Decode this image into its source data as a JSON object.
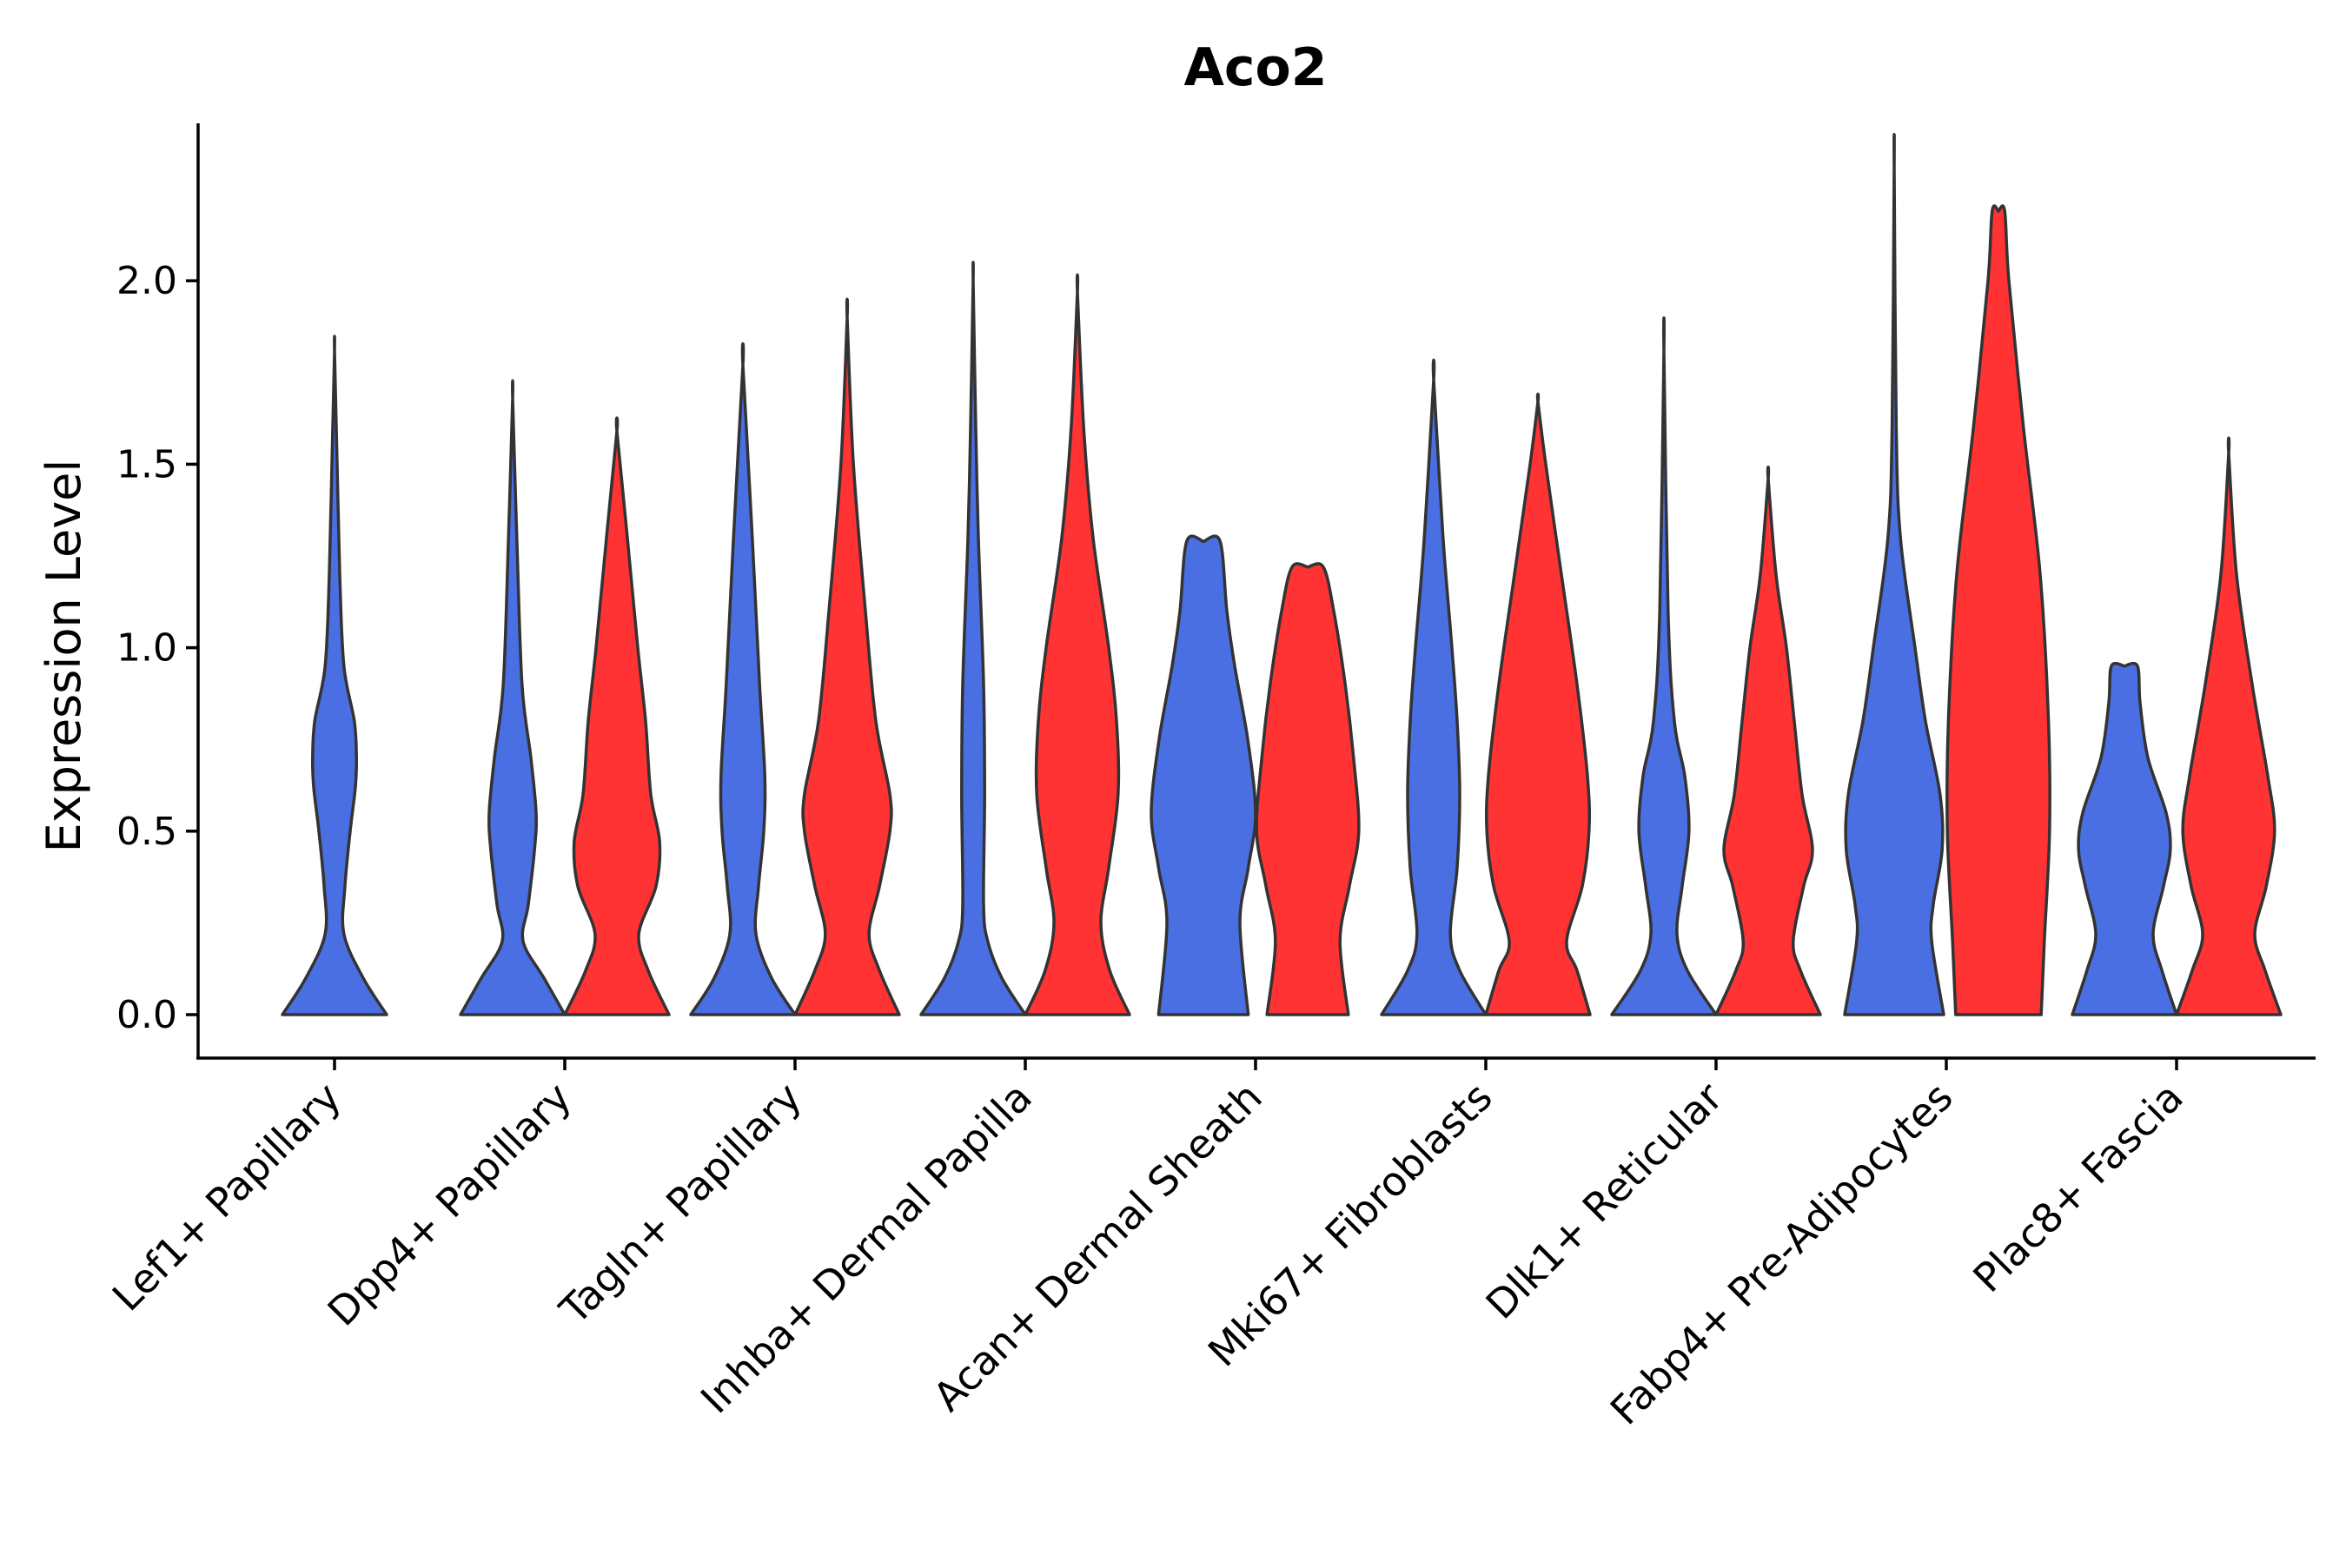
{
  "chart_data": {
    "type": "violin",
    "title": "Aco2",
    "xlabel": "",
    "ylabel": "Expression Level",
    "ylim": [
      -0.12,
      2.45
    ],
    "yticks": [
      0.0,
      0.5,
      1.0,
      1.5,
      2.0
    ],
    "ytick_labels": [
      "0.0",
      "0.5",
      "1.0",
      "1.5",
      "2.0"
    ],
    "categories": [
      "Lef1+ Papillary",
      "Dpp4+ Papillary",
      "Tagln+ Papillary",
      "Inhba+ Dermal Papilla",
      "Acan+ Dermal Sheath",
      "Mki67+ Fibroblasts",
      "Dlk1+ Reticular",
      "Fabp4+ Pre-Adipocytes",
      "Plac8+ Fascia"
    ],
    "series_colors": {
      "blue": "#4A6FE3",
      "red": "#FF3333"
    },
    "violins": [
      {
        "category": "Lef1+ Papillary",
        "group": "blue",
        "max": 1.81,
        "profile": [
          [
            0.0,
            1.0
          ],
          [
            0.1,
            0.55
          ],
          [
            0.22,
            0.18
          ],
          [
            0.35,
            0.2
          ],
          [
            0.5,
            0.3
          ],
          [
            0.62,
            0.4
          ],
          [
            0.7,
            0.42
          ],
          [
            0.8,
            0.38
          ],
          [
            0.95,
            0.18
          ],
          [
            1.2,
            0.1
          ],
          [
            1.5,
            0.05
          ],
          [
            1.81,
            0.0
          ]
        ]
      },
      {
        "category": "Dpp4+ Papillary",
        "group": "blue",
        "max": 1.68,
        "profile": [
          [
            0.0,
            1.0
          ],
          [
            0.1,
            0.6
          ],
          [
            0.2,
            0.2
          ],
          [
            0.3,
            0.3
          ],
          [
            0.45,
            0.42
          ],
          [
            0.55,
            0.45
          ],
          [
            0.7,
            0.35
          ],
          [
            0.9,
            0.18
          ],
          [
            1.3,
            0.08
          ],
          [
            1.68,
            0.0
          ]
        ]
      },
      {
        "category": "Dpp4+ Papillary",
        "group": "red",
        "max": 1.59,
        "profile": [
          [
            0.0,
            1.0
          ],
          [
            0.12,
            0.6
          ],
          [
            0.22,
            0.42
          ],
          [
            0.35,
            0.75
          ],
          [
            0.47,
            0.82
          ],
          [
            0.6,
            0.65
          ],
          [
            0.8,
            0.55
          ],
          [
            1.0,
            0.4
          ],
          [
            1.3,
            0.2
          ],
          [
            1.59,
            0.0
          ]
        ]
      },
      {
        "category": "Tagln+ Papillary",
        "group": "blue",
        "max": 1.77,
        "profile": [
          [
            0.0,
            1.0
          ],
          [
            0.1,
            0.55
          ],
          [
            0.22,
            0.25
          ],
          [
            0.35,
            0.3
          ],
          [
            0.5,
            0.4
          ],
          [
            0.65,
            0.42
          ],
          [
            0.9,
            0.32
          ],
          [
            1.3,
            0.18
          ],
          [
            1.77,
            0.0
          ]
        ]
      },
      {
        "category": "Tagln+ Papillary",
        "group": "red",
        "max": 1.9,
        "profile": [
          [
            0.0,
            1.0
          ],
          [
            0.12,
            0.62
          ],
          [
            0.22,
            0.42
          ],
          [
            0.35,
            0.62
          ],
          [
            0.5,
            0.82
          ],
          [
            0.6,
            0.82
          ],
          [
            0.8,
            0.55
          ],
          [
            1.1,
            0.35
          ],
          [
            1.5,
            0.12
          ],
          [
            1.9,
            0.0
          ]
        ]
      },
      {
        "category": "Inhba+ Dermal Papilla",
        "group": "blue",
        "max": 2.0,
        "profile": [
          [
            0.0,
            1.0
          ],
          [
            0.1,
            0.55
          ],
          [
            0.2,
            0.28
          ],
          [
            0.3,
            0.2
          ],
          [
            0.6,
            0.22
          ],
          [
            0.9,
            0.2
          ],
          [
            1.3,
            0.1
          ],
          [
            1.6,
            0.05
          ],
          [
            2.0,
            0.0
          ]
        ]
      },
      {
        "category": "Inhba+ Dermal Papilla",
        "group": "red",
        "max": 1.97,
        "profile": [
          [
            0.0,
            1.0
          ],
          [
            0.12,
            0.62
          ],
          [
            0.25,
            0.45
          ],
          [
            0.4,
            0.6
          ],
          [
            0.6,
            0.78
          ],
          [
            0.8,
            0.75
          ],
          [
            1.0,
            0.6
          ],
          [
            1.3,
            0.3
          ],
          [
            1.6,
            0.12
          ],
          [
            1.97,
            0.0
          ]
        ]
      },
      {
        "category": "Acan+ Dermal Sheath",
        "group": "blue",
        "max": 1.29,
        "profile": [
          [
            0.0,
            0.86
          ],
          [
            0.25,
            0.7
          ],
          [
            0.4,
            0.86
          ],
          [
            0.55,
            1.0
          ],
          [
            0.75,
            0.85
          ],
          [
            0.95,
            0.6
          ],
          [
            1.1,
            0.45
          ],
          [
            1.29,
            0.32
          ],
          [
            1.29,
            0.0
          ]
        ]
      },
      {
        "category": "Acan+ Dermal Sheath",
        "group": "red",
        "max": 1.22,
        "profile": [
          [
            0.0,
            0.78
          ],
          [
            0.2,
            0.62
          ],
          [
            0.35,
            0.8
          ],
          [
            0.5,
            0.98
          ],
          [
            0.7,
            0.88
          ],
          [
            0.9,
            0.72
          ],
          [
            1.1,
            0.5
          ],
          [
            1.22,
            0.3
          ],
          [
            1.22,
            0.0
          ]
        ]
      },
      {
        "category": "Mki67+ Fibroblasts",
        "group": "blue",
        "max": 1.73,
        "profile": [
          [
            0.0,
            1.0
          ],
          [
            0.12,
            0.5
          ],
          [
            0.22,
            0.32
          ],
          [
            0.4,
            0.45
          ],
          [
            0.6,
            0.5
          ],
          [
            0.8,
            0.45
          ],
          [
            1.0,
            0.35
          ],
          [
            1.3,
            0.18
          ],
          [
            1.73,
            0.0
          ]
        ]
      },
      {
        "category": "Mki67+ Fibroblasts",
        "group": "red",
        "max": 1.67,
        "profile": [
          [
            0.0,
            1.0
          ],
          [
            0.12,
            0.75
          ],
          [
            0.2,
            0.55
          ],
          [
            0.35,
            0.85
          ],
          [
            0.5,
            0.98
          ],
          [
            0.65,
            0.95
          ],
          [
            0.9,
            0.75
          ],
          [
            1.2,
            0.45
          ],
          [
            1.5,
            0.15
          ],
          [
            1.67,
            0.0
          ]
        ]
      },
      {
        "category": "Dlk1+ Reticular",
        "group": "blue",
        "max": 1.81,
        "profile": [
          [
            0.0,
            1.0
          ],
          [
            0.12,
            0.45
          ],
          [
            0.22,
            0.25
          ],
          [
            0.35,
            0.35
          ],
          [
            0.5,
            0.48
          ],
          [
            0.65,
            0.4
          ],
          [
            0.8,
            0.2
          ],
          [
            1.1,
            0.08
          ],
          [
            1.81,
            0.0
          ]
        ]
      },
      {
        "category": "Dlk1+ Reticular",
        "group": "red",
        "max": 1.46,
        "profile": [
          [
            0.0,
            1.0
          ],
          [
            0.12,
            0.62
          ],
          [
            0.2,
            0.48
          ],
          [
            0.35,
            0.68
          ],
          [
            0.45,
            0.85
          ],
          [
            0.6,
            0.65
          ],
          [
            0.8,
            0.5
          ],
          [
            1.0,
            0.35
          ],
          [
            1.2,
            0.15
          ],
          [
            1.46,
            0.0
          ]
        ]
      },
      {
        "category": "Fabp4+ Pre-Adipocytes",
        "group": "blue",
        "max": 2.31,
        "profile": [
          [
            0.0,
            0.95
          ],
          [
            0.2,
            0.72
          ],
          [
            0.3,
            0.75
          ],
          [
            0.45,
            0.92
          ],
          [
            0.6,
            0.88
          ],
          [
            0.8,
            0.6
          ],
          [
            1.0,
            0.4
          ],
          [
            1.3,
            0.12
          ],
          [
            1.6,
            0.04
          ],
          [
            2.31,
            0.0
          ]
        ]
      },
      {
        "category": "Fabp4+ Pre-Adipocytes",
        "group": "red",
        "max": 2.19,
        "profile": [
          [
            0.0,
            0.82
          ],
          [
            0.2,
            0.88
          ],
          [
            0.5,
            0.98
          ],
          [
            0.8,
            0.96
          ],
          [
            1.2,
            0.8
          ],
          [
            1.6,
            0.48
          ],
          [
            2.0,
            0.2
          ],
          [
            2.19,
            0.12
          ],
          [
            2.19,
            0.0
          ]
        ]
      },
      {
        "category": "Plac8+ Fascia",
        "group": "blue",
        "max": 0.95,
        "profile": [
          [
            0.0,
            1.0
          ],
          [
            0.12,
            0.72
          ],
          [
            0.22,
            0.55
          ],
          [
            0.35,
            0.75
          ],
          [
            0.45,
            0.88
          ],
          [
            0.55,
            0.8
          ],
          [
            0.7,
            0.45
          ],
          [
            0.85,
            0.3
          ],
          [
            0.95,
            0.25
          ],
          [
            0.95,
            0.0
          ]
        ]
      },
      {
        "category": "Plac8+ Fascia",
        "group": "red",
        "max": 1.53,
        "profile": [
          [
            0.0,
            1.0
          ],
          [
            0.12,
            0.7
          ],
          [
            0.22,
            0.5
          ],
          [
            0.35,
            0.72
          ],
          [
            0.5,
            0.88
          ],
          [
            0.65,
            0.75
          ],
          [
            0.9,
            0.45
          ],
          [
            1.2,
            0.15
          ],
          [
            1.53,
            0.0
          ]
        ]
      }
    ]
  }
}
